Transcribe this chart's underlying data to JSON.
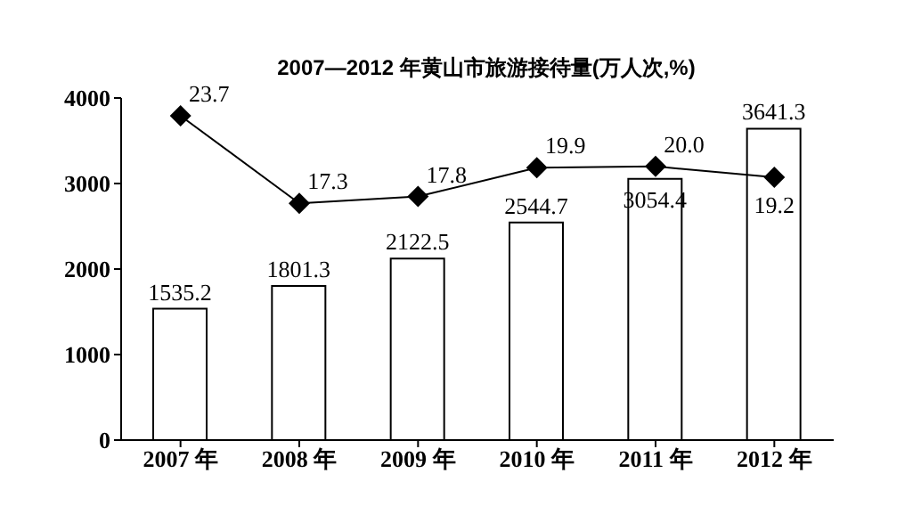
{
  "chart_data": {
    "type": "bar",
    "title": "2007—2012 年黄山市旅游接待量(万人次,%)",
    "categories": [
      "2007 年",
      "2008 年",
      "2009 年",
      "2010 年",
      "2011 年",
      "2012 年"
    ],
    "series": [
      {
        "color": "#ffffff",
        "values": [
          1535.2,
          1801.3,
          2122.5,
          2544.7,
          3054.4,
          3641.3
        ]
      },
      {
        "type": "line",
        "axis": "y2",
        "color": "#000000",
        "marker": "diamond",
        "values": [
          23.7,
          17.3,
          17.8,
          19.9,
          20.0,
          19.2
        ],
        "value_labels": [
          "23.7",
          "17.3",
          "17.8",
          "19.9",
          "20.0",
          "19.2"
        ]
      }
    ],
    "ylim": [
      0,
      4000
    ],
    "yticks": [
      0,
      1000,
      2000,
      3000,
      4000
    ],
    "y2lim": [
      0,
      25
    ],
    "tick_labels": "xy",
    "data_labels": true
  }
}
